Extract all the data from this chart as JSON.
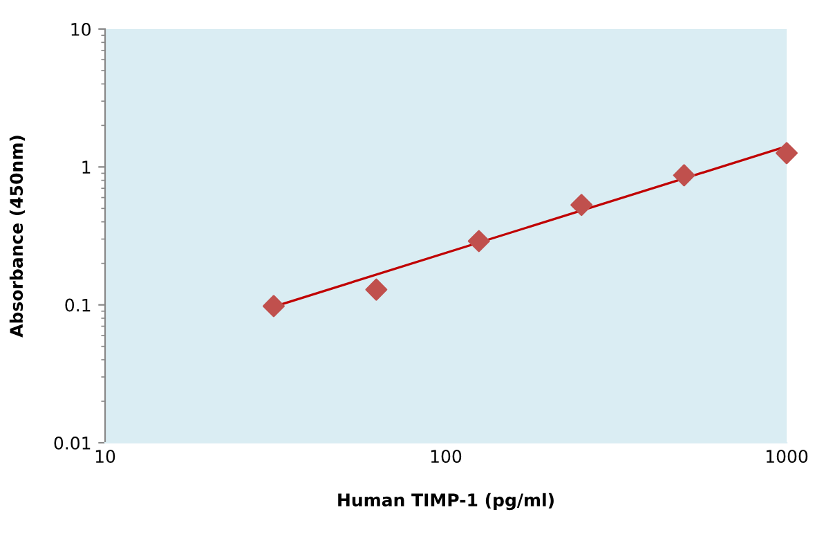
{
  "chart_data": {
    "type": "scatter",
    "xlabel": "Human TIMP-1 (pg/ml)",
    "ylabel": "Absorbance (450nm)",
    "log": "xy",
    "xlim": [
      10,
      1000
    ],
    "xticks": [
      10,
      100,
      1000
    ],
    "ylim": [
      0.01,
      10
    ],
    "yticks": [
      0.01,
      0.1,
      1,
      10
    ],
    "x": [
      31.25,
      62.5,
      125,
      250,
      500,
      1000
    ],
    "grid": false,
    "series": [
      {
        "marker": "diamond",
        "color": "#c0504d",
        "values": [
          0.098,
          0.129,
          0.29,
          0.53,
          0.87,
          1.26
        ]
      },
      {
        "type": "line",
        "color": "#c00000",
        "x": [
          31.25,
          1000
        ],
        "values": [
          0.097,
          1.41
        ],
        "line_style": "solid"
      }
    ]
  }
}
